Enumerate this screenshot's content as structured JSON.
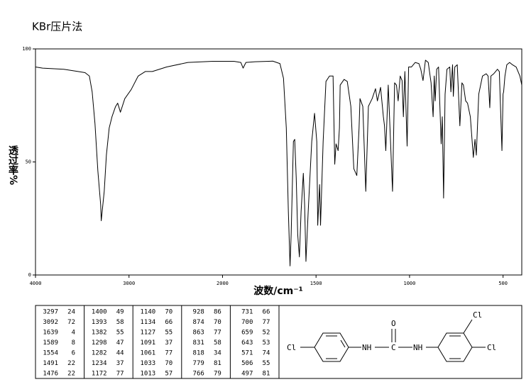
{
  "chart_data": {
    "type": "line",
    "title": "KBr压片法",
    "xlabel": "波数/cm⁻¹",
    "ylabel": "透过率%",
    "xlim": [
      4000,
      400
    ],
    "xticks": [
      4000,
      3000,
      2000,
      1500,
      1000,
      500
    ],
    "xscale_break": 2000,
    "xscale_break_factor": 2,
    "ylim": [
      0,
      100
    ],
    "yticks": [
      0,
      50,
      100
    ],
    "series": [
      {
        "color": "#000000",
        "x": [
          4000,
          3924,
          3697,
          3545,
          3470,
          3424,
          3394,
          3364,
          3333,
          3303,
          3297,
          3265,
          3242,
          3212,
          3182,
          3144,
          3121,
          3092,
          3045,
          2977,
          2902,
          2826,
          2750,
          2598,
          2371,
          2106,
          1939,
          1902,
          1890,
          1875,
          1826,
          1731,
          1693,
          1674,
          1659,
          1648,
          1639,
          1633,
          1621,
          1614,
          1606,
          1598,
          1589,
          1580,
          1568,
          1561,
          1554,
          1542,
          1523,
          1508,
          1496,
          1491,
          1481,
          1476,
          1462,
          1447,
          1428,
          1409,
          1400,
          1393,
          1382,
          1375,
          1371,
          1350,
          1333,
          1314,
          1298,
          1282,
          1270,
          1265,
          1250,
          1234,
          1220,
          1200,
          1182,
          1172,
          1155,
          1140,
          1134,
          1127,
          1114,
          1091,
          1080,
          1070,
          1061,
          1050,
          1040,
          1033,
          1025,
          1013,
          1005,
          990,
          970,
          950,
          940,
          928,
          915,
          900,
          885,
          874,
          868,
          863,
          855,
          845,
          831,
          825,
          818,
          810,
          800,
          785,
          779,
          770,
          766,
          758,
          745,
          731,
          720,
          712,
          700,
          690,
          675,
          659,
          650,
          643,
          630,
          610,
          590,
          580,
          571,
          565,
          550,
          540,
          530,
          520,
          506,
          500,
          497,
          490,
          480,
          465,
          450,
          430,
          410,
          400
        ],
        "values": [
          92,
          91.5,
          91,
          90,
          89.5,
          88,
          81,
          67,
          46,
          31,
          24,
          37,
          53,
          65,
          70,
          74.5,
          76,
          72,
          78,
          82,
          88,
          90,
          90,
          92,
          94,
          94.5,
          94.5,
          94,
          91.5,
          94,
          94.3,
          94.6,
          93.5,
          87,
          65,
          28,
          4,
          18,
          59,
          60,
          43,
          18,
          8,
          28,
          45,
          31,
          6,
          28,
          59,
          71.5,
          59,
          22,
          40,
          22,
          59,
          85.6,
          88,
          88,
          49,
          58,
          55,
          65,
          84,
          86.5,
          85.6,
          74.6,
          47,
          44,
          65,
          78,
          74.6,
          37,
          74.6,
          78,
          82.4,
          77,
          83,
          70,
          66,
          55,
          84,
          37,
          85,
          84,
          77,
          88,
          86,
          70,
          90,
          57,
          92,
          92,
          94,
          93.5,
          91,
          86,
          95,
          94,
          85,
          70,
          88,
          77,
          91,
          92,
          58,
          70,
          34,
          80,
          91,
          92,
          81,
          93,
          79,
          92,
          93,
          66,
          85,
          84,
          77,
          76,
          70,
          52,
          60,
          53,
          80,
          88,
          89,
          88,
          74,
          88,
          89,
          90,
          91,
          90,
          55,
          80,
          81,
          88,
          93,
          94,
          93,
          92,
          88,
          84
        ]
      }
    ]
  },
  "peak_table": {
    "columns": [
      [
        [
          3297,
          24
        ],
        [
          3092,
          72
        ],
        [
          1639,
          4
        ],
        [
          1589,
          8
        ],
        [
          1554,
          6
        ],
        [
          1491,
          22
        ],
        [
          1476,
          22
        ]
      ],
      [
        [
          1400,
          49
        ],
        [
          1393,
          58
        ],
        [
          1382,
          55
        ],
        [
          1298,
          47
        ],
        [
          1282,
          44
        ],
        [
          1234,
          37
        ],
        [
          1172,
          77
        ]
      ],
      [
        [
          1140,
          70
        ],
        [
          1134,
          66
        ],
        [
          1127,
          55
        ],
        [
          1091,
          37
        ],
        [
          1061,
          77
        ],
        [
          1033,
          70
        ],
        [
          1013,
          57
        ]
      ],
      [
        [
          928,
          86
        ],
        [
          874,
          70
        ],
        [
          863,
          77
        ],
        [
          831,
          58
        ],
        [
          818,
          34
        ],
        [
          779,
          81
        ],
        [
          766,
          79
        ]
      ],
      [
        [
          731,
          66
        ],
        [
          700,
          77
        ],
        [
          659,
          52
        ],
        [
          643,
          53
        ],
        [
          571,
          74
        ],
        [
          506,
          55
        ],
        [
          497,
          81
        ]
      ]
    ]
  },
  "structure": {
    "labels": [
      "Cl",
      "NH",
      "C",
      "O",
      "NH",
      "Cl",
      "Cl"
    ]
  }
}
